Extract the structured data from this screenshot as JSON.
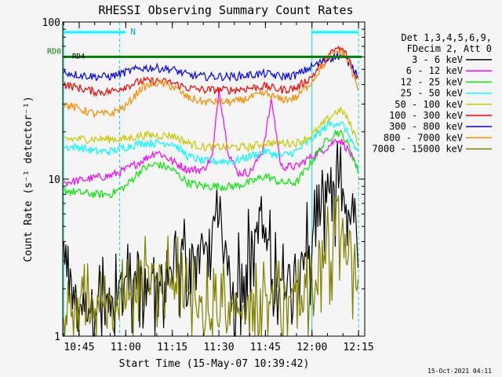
{
  "chart_data": {
    "type": "line",
    "title": "RHESSI Observing Summary Count Rates",
    "xlabel": "Start Time (15-May-07 10:39:42)",
    "ylabel": "Count Rate (s⁻¹ detector⁻¹)",
    "y_scale": "log",
    "xlim": [
      "10:39:42",
      "12:17:00"
    ],
    "ylim": [
      1,
      100
    ],
    "x_ticks": [
      "10:45",
      "11:00",
      "11:15",
      "11:30",
      "11:45",
      "12:00",
      "12:15"
    ],
    "y_ticks": [
      "1",
      "10",
      "100"
    ],
    "legend_title": [
      "Det 1,3,4,5,6,9,",
      "FDecim 2, Att 0"
    ],
    "legend_position": "right",
    "footer_date": "15-Oct-2021 04:11",
    "annotations": {
      "n_flag": "N",
      "rd0_label": "RD0",
      "rd4_label": "RD4"
    },
    "cyan_flag_spans": [
      [
        "10:39:42",
        "11:00"
      ],
      [
        "12:00",
        "12:15"
      ]
    ],
    "saa_night_boundaries": [
      "10:40",
      "10:58",
      "12:00",
      "12:15"
    ],
    "series": [
      {
        "name": "3 - 6 keV",
        "color": "#000000",
        "x": [
          "10:40",
          "10:45",
          "10:50",
          "10:55",
          "11:00",
          "11:05",
          "11:10",
          "11:15",
          "11:20",
          "11:25",
          "11:30",
          "11:32",
          "11:35",
          "11:40",
          "11:43",
          "11:46",
          "11:50",
          "11:55",
          "12:00",
          "12:05",
          "12:08",
          "12:10",
          "12:12",
          "12:15"
        ],
        "y": [
          2.3,
          1.6,
          1.6,
          1.6,
          2.2,
          2.2,
          2.3,
          2.4,
          3.4,
          3.3,
          5.5,
          3.3,
          2.0,
          3.5,
          5.5,
          3.4,
          2.0,
          3.0,
          4.0,
          8.0,
          9.5,
          7.5,
          5.5,
          4.3
        ]
      },
      {
        "name": "6 - 12 keV",
        "color": "#ff00ff",
        "x": [
          "10:40",
          "10:45",
          "10:50",
          "10:55",
          "11:00",
          "11:05",
          "11:10",
          "11:15",
          "11:20",
          "11:25",
          "11:28",
          "11:30",
          "11:33",
          "11:36",
          "11:40",
          "11:44",
          "11:47",
          "11:50",
          "11:55",
          "12:00",
          "12:05",
          "12:08",
          "12:10",
          "12:12",
          "12:15"
        ],
        "y": [
          9.5,
          9.8,
          10.2,
          10.5,
          11.5,
          13,
          15,
          13,
          11.5,
          11.5,
          14,
          38,
          15,
          11,
          11,
          15,
          32,
          12,
          12,
          14,
          16,
          18,
          17,
          15,
          11
        ]
      },
      {
        "name": "12 - 25 keV",
        "color": "#00ee00",
        "x": [
          "10:40",
          "10:45",
          "10:50",
          "10:55",
          "11:00",
          "11:05",
          "11:10",
          "11:15",
          "11:20",
          "11:25",
          "11:30",
          "11:35",
          "11:40",
          "11:45",
          "11:50",
          "11:55",
          "12:00",
          "12:05",
          "12:08",
          "12:10",
          "12:12",
          "12:15"
        ],
        "y": [
          8.5,
          8.2,
          8.0,
          8.0,
          9.0,
          11.5,
          12.5,
          11.5,
          9.5,
          9.0,
          9.0,
          9.0,
          9.5,
          10.5,
          9.5,
          9.5,
          13,
          18,
          20,
          19,
          16,
          11
        ]
      },
      {
        "name": "25 - 50 keV",
        "color": "#00ffff",
        "x": [
          "10:40",
          "10:45",
          "10:50",
          "10:55",
          "11:00",
          "11:05",
          "11:10",
          "11:15",
          "11:20",
          "11:25",
          "11:30",
          "11:35",
          "11:40",
          "11:45",
          "11:50",
          "11:55",
          "12:00",
          "12:05",
          "12:08",
          "12:10",
          "12:12",
          "12:15"
        ],
        "y": [
          16,
          16,
          15,
          15,
          16,
          17,
          17,
          17,
          14,
          13,
          13,
          13,
          14,
          15,
          14,
          15,
          18,
          22,
          23,
          22,
          19,
          14
        ]
      },
      {
        "name": "50 - 100 keV",
        "color": "#c8c800",
        "x": [
          "10:40",
          "10:45",
          "10:50",
          "10:55",
          "11:00",
          "11:05",
          "11:10",
          "11:15",
          "11:20",
          "11:25",
          "11:30",
          "11:35",
          "11:40",
          "11:45",
          "11:50",
          "11:55",
          "12:00",
          "12:05",
          "12:08",
          "12:10",
          "12:12",
          "12:15"
        ],
        "y": [
          18,
          18,
          18,
          18,
          18,
          19,
          19,
          19,
          17,
          16,
          16,
          16,
          16,
          17,
          17,
          17,
          19,
          24,
          27,
          27,
          23,
          17
        ]
      },
      {
        "name": "100 - 300 keV",
        "color": "#ff0000",
        "x": [
          "10:40",
          "10:45",
          "10:50",
          "10:55",
          "11:00",
          "11:05",
          "11:10",
          "11:15",
          "11:20",
          "11:25",
          "11:30",
          "11:35",
          "11:40",
          "11:45",
          "11:50",
          "11:55",
          "12:00",
          "12:05",
          "12:08",
          "12:10",
          "12:12",
          "12:15"
        ],
        "y": [
          40,
          38,
          36,
          36,
          39,
          42,
          42,
          41,
          38,
          37,
          37,
          37,
          38,
          39,
          37,
          38,
          45,
          60,
          68,
          66,
          58,
          42
        ]
      },
      {
        "name": "300 - 800 keV",
        "color": "#0000ff",
        "x": [
          "10:40",
          "10:45",
          "10:50",
          "10:55",
          "11:00",
          "11:05",
          "11:10",
          "11:15",
          "11:20",
          "11:25",
          "11:30",
          "11:35",
          "11:40",
          "11:45",
          "11:50",
          "11:55",
          "12:00",
          "12:05",
          "12:08",
          "12:10",
          "12:12",
          "12:15"
        ],
        "y": [
          48,
          46,
          45,
          45,
          48,
          51,
          51,
          50,
          46,
          45,
          45,
          45,
          46,
          47,
          45,
          46,
          52,
          58,
          61,
          60,
          55,
          46
        ]
      },
      {
        "name": "800 - 7000 keV",
        "color": "#ff8c00",
        "x": [
          "10:40",
          "10:45",
          "10:50",
          "10:55",
          "11:00",
          "11:05",
          "11:10",
          "11:15",
          "11:20",
          "11:25",
          "11:30",
          "11:35",
          "11:40",
          "11:45",
          "11:50",
          "11:55",
          "12:00",
          "12:05",
          "12:08",
          "12:10",
          "12:12",
          "12:15"
        ],
        "y": [
          30,
          28,
          26,
          26,
          29,
          38,
          41,
          39,
          33,
          31,
          31,
          31,
          33,
          35,
          32,
          33,
          42,
          58,
          65,
          63,
          55,
          36
        ]
      },
      {
        "name": "7000 - 15000 keV",
        "color": "#808000",
        "x": [
          "10:40",
          "10:45",
          "10:50",
          "10:55",
          "11:00",
          "11:05",
          "11:10",
          "11:15",
          "11:20",
          "11:25",
          "11:30",
          "11:35",
          "11:40",
          "11:45",
          "11:50",
          "11:55",
          "12:00",
          "12:05",
          "12:08",
          "12:10",
          "12:12",
          "12:15"
        ],
        "y": [
          1.5,
          1.5,
          1.5,
          1.5,
          1.8,
          2.2,
          2.4,
          2.3,
          1.8,
          1.5,
          1.5,
          1.5,
          1.6,
          1.8,
          1.6,
          1.6,
          2.6,
          3.6,
          4.1,
          3.9,
          3.3,
          2.3
        ]
      }
    ],
    "decimation_level": [
      {
        "name": "RD0",
        "color": "#008000",
        "x": [
          "10:40",
          "12:16"
        ],
        "y": [
          60,
          60
        ]
      }
    ]
  }
}
